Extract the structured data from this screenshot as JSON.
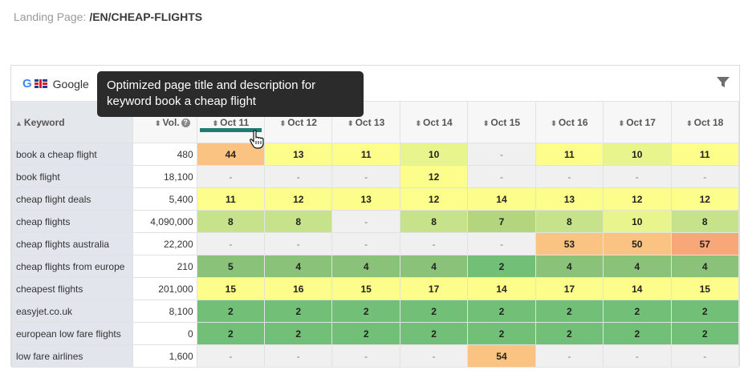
{
  "landing": {
    "label": "Landing Page:",
    "path": "/EN/CHEAP-FLIGHTS"
  },
  "panel": {
    "engine_label": "Google",
    "google_glyph": "G",
    "icons": [
      "google-icon",
      "uk-flag-icon",
      "filter-icon"
    ]
  },
  "tooltip": {
    "text": "Optimized page title and description for keyword book a cheap flight"
  },
  "table": {
    "keyword_header": "Keyword",
    "volume_header": "Vol.",
    "help_glyph": "?",
    "sort_glyph": "⬍",
    "sort_asc_glyph": "▲",
    "dates": [
      "Oct 11",
      "Oct 12",
      "Oct 13",
      "Oct 14",
      "Oct 15",
      "Oct 16",
      "Oct 17",
      "Oct 18"
    ],
    "rows": [
      {
        "keyword": "book a cheap flight",
        "volume": "480",
        "ranks": [
          "44",
          "13",
          "11",
          "10",
          "-",
          "11",
          "10",
          "11"
        ]
      },
      {
        "keyword": "book flight",
        "volume": "18,100",
        "ranks": [
          "-",
          "-",
          "-",
          "12",
          "-",
          "-",
          "-",
          "-"
        ]
      },
      {
        "keyword": "cheap flight deals",
        "volume": "5,400",
        "ranks": [
          "11",
          "12",
          "13",
          "12",
          "14",
          "13",
          "12",
          "12"
        ]
      },
      {
        "keyword": "cheap flights",
        "volume": "4,090,000",
        "ranks": [
          "8",
          "8",
          "-",
          "8",
          "7",
          "8",
          "10",
          "8"
        ]
      },
      {
        "keyword": "cheap flights australia",
        "volume": "22,200",
        "ranks": [
          "-",
          "-",
          "-",
          "-",
          "-",
          "53",
          "50",
          "57"
        ]
      },
      {
        "keyword": "cheap flights from europe",
        "volume": "210",
        "ranks": [
          "5",
          "4",
          "4",
          "4",
          "2",
          "4",
          "4",
          "4"
        ]
      },
      {
        "keyword": "cheapest flights",
        "volume": "201,000",
        "ranks": [
          "15",
          "16",
          "15",
          "17",
          "14",
          "17",
          "14",
          "15"
        ]
      },
      {
        "keyword": "easyjet.co.uk",
        "volume": "8,100",
        "ranks": [
          "2",
          "2",
          "2",
          "2",
          "2",
          "2",
          "2",
          "2"
        ]
      },
      {
        "keyword": "european low fare flights",
        "volume": "0",
        "ranks": [
          "2",
          "2",
          "2",
          "2",
          "2",
          "2",
          "2",
          "2"
        ]
      },
      {
        "keyword": "low fare airlines",
        "volume": "1,600",
        "ranks": [
          "-",
          "-",
          "-",
          "-",
          "54",
          "-",
          "-",
          "-"
        ]
      }
    ]
  },
  "colors": {
    "none": "#f0f0f0",
    "rank_2": "#72bf78",
    "rank_4_5": "#8ac27a",
    "rank_7": "#b3d57d",
    "rank_8": "#c6e38c",
    "rank_10": "#e8f58c",
    "rank_11_17": "#fdfd8c",
    "rank_44_54": "#fbc382",
    "rank_57": "#f8a878",
    "accent_underline": "#1e7d6e"
  }
}
